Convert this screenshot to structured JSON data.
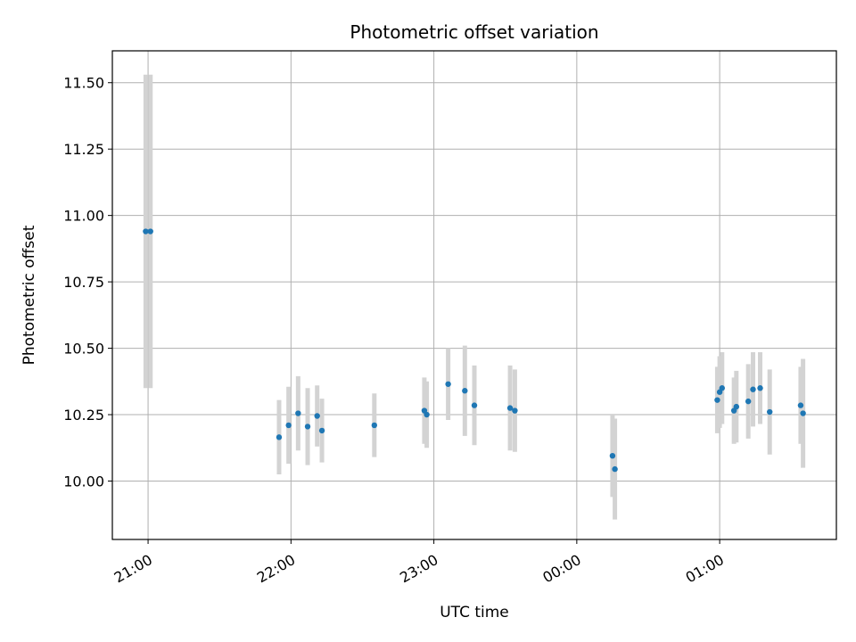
{
  "chart_data": {
    "type": "scatter",
    "title": "Photometric offset variation",
    "xlabel": "UTC time",
    "ylabel": "Photometric offset",
    "x_tick_labels": [
      "21:00",
      "22:00",
      "23:00",
      "00:00",
      "01:00"
    ],
    "y_tick_labels": [
      "10.00",
      "10.25",
      "10.50",
      "10.75",
      "11.00",
      "11.25",
      "11.50"
    ],
    "x_ticks_hours_utc": [
      21,
      22,
      23,
      24,
      25
    ],
    "y_ticks": [
      10.0,
      10.25,
      10.5,
      10.75,
      11.0,
      11.25,
      11.5
    ],
    "xlim_utc": [
      "20:45",
      "01:49"
    ],
    "ylim": [
      9.78,
      11.62
    ],
    "grid": true,
    "marker_color": "#1f77b4",
    "errorbar_color": "#d3d3d3",
    "series": [
      {
        "points": [
          {
            "t": "20:59",
            "y": 10.94,
            "err": 0.59
          },
          {
            "t": "21:01",
            "y": 10.94,
            "err": 0.59
          },
          {
            "t": "21:55",
            "y": 10.165,
            "err": 0.14
          },
          {
            "t": "21:59",
            "y": 10.21,
            "err": 0.145
          },
          {
            "t": "22:03",
            "y": 10.255,
            "err": 0.14
          },
          {
            "t": "22:07",
            "y": 10.205,
            "err": 0.145
          },
          {
            "t": "22:11",
            "y": 10.245,
            "err": 0.115
          },
          {
            "t": "22:13",
            "y": 10.19,
            "err": 0.12
          },
          {
            "t": "22:35",
            "y": 10.21,
            "err": 0.12
          },
          {
            "t": "22:56",
            "y": 10.265,
            "err": 0.125
          },
          {
            "t": "22:57",
            "y": 10.25,
            "err": 0.125
          },
          {
            "t": "23:06",
            "y": 10.365,
            "err": 0.135
          },
          {
            "t": "23:13",
            "y": 10.34,
            "err": 0.17
          },
          {
            "t": "23:17",
            "y": 10.285,
            "err": 0.15
          },
          {
            "t": "23:32",
            "y": 10.275,
            "err": 0.16
          },
          {
            "t": "23:34",
            "y": 10.265,
            "err": 0.155
          },
          {
            "t": "00:15",
            "y": 10.095,
            "err": 0.155
          },
          {
            "t": "00:16",
            "y": 10.045,
            "err": 0.19
          },
          {
            "t": "00:59",
            "y": 10.305,
            "err": 0.125
          },
          {
            "t": "01:00",
            "y": 10.335,
            "err": 0.135
          },
          {
            "t": "01:01",
            "y": 10.35,
            "err": 0.135
          },
          {
            "t": "01:06",
            "y": 10.265,
            "err": 0.125
          },
          {
            "t": "01:07",
            "y": 10.28,
            "err": 0.135
          },
          {
            "t": "01:12",
            "y": 10.3,
            "err": 0.14
          },
          {
            "t": "01:14",
            "y": 10.345,
            "err": 0.14
          },
          {
            "t": "01:17",
            "y": 10.35,
            "err": 0.135
          },
          {
            "t": "01:21",
            "y": 10.26,
            "err": 0.16
          },
          {
            "t": "01:34",
            "y": 10.285,
            "err": 0.145
          },
          {
            "t": "01:35",
            "y": 10.255,
            "err": 0.205
          }
        ]
      }
    ]
  }
}
